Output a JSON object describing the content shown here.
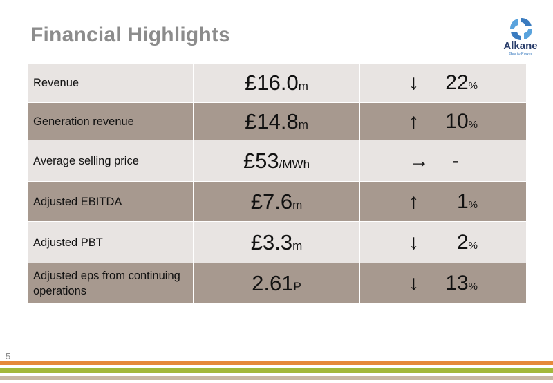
{
  "slide": {
    "title": "Financial Highlights",
    "page_number": "5"
  },
  "logo": {
    "name": "Alkane",
    "tagline": "Gas to Power"
  },
  "rows": [
    {
      "label": "Revenue",
      "value": "£16.0",
      "unit": "m",
      "direction": "down",
      "arrow": "↓",
      "change": "22",
      "change_unit": "%"
    },
    {
      "label": "Generation revenue",
      "value": "£14.8",
      "unit": "m",
      "direction": "up",
      "arrow": "↑",
      "change": "10",
      "change_unit": "%"
    },
    {
      "label": "Average selling price",
      "value": "£53",
      "unit": "/MWh",
      "direction": "flat",
      "arrow": "→",
      "change": "-",
      "change_unit": ""
    },
    {
      "label": "Adjusted EBITDA",
      "value": "£7.6",
      "unit": "m",
      "direction": "up",
      "arrow": "↑",
      "change": "1",
      "change_unit": "%"
    },
    {
      "label": "Adjusted PBT",
      "value": "£3.3",
      "unit": "m",
      "direction": "down",
      "arrow": "↓",
      "change": "2",
      "change_unit": "%"
    },
    {
      "label": "Adjusted eps from continuing operations",
      "value": "2.61",
      "unit": "P",
      "direction": "down",
      "arrow": "↓",
      "change": "13",
      "change_unit": "%"
    }
  ],
  "colors": {
    "row_light": "#e8e4e2",
    "row_dark": "#a7998f",
    "stripe_orange": "#e6893a",
    "stripe_green": "#a3b83a",
    "stripe_tan": "#c7b8a3",
    "logo_blue": "#3a7bbf"
  }
}
